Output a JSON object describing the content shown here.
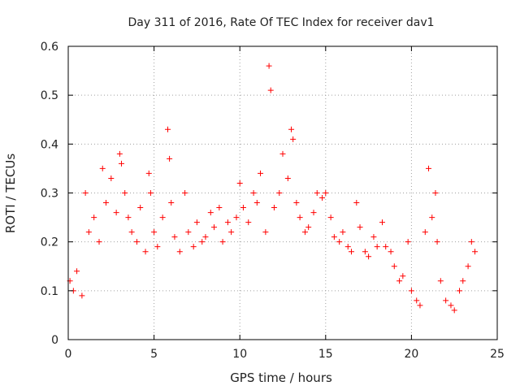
{
  "chart_data": {
    "type": "scatter",
    "title": "Day 311 of 2016, Rate Of TEC Index for receiver dav1",
    "xlabel": "GPS time / hours",
    "ylabel": "ROTI / TECUs",
    "xlim": [
      0,
      25
    ],
    "ylim": [
      0,
      0.6
    ],
    "xticks": [
      0,
      5,
      10,
      15,
      20,
      25
    ],
    "xtick_labels": [
      "0",
      "5",
      "10",
      "15",
      "20",
      "25"
    ],
    "yticks": [
      0,
      0.1,
      0.2,
      0.3,
      0.4,
      0.5,
      0.6
    ],
    "ytick_labels": [
      "0",
      "0.1",
      "0.2",
      "0.3",
      "0.4",
      "0.5",
      "0.6"
    ],
    "grid": true,
    "marker": "+",
    "color": "#ff0000",
    "series": [
      {
        "name": "dav1",
        "x": [
          0.1,
          0.3,
          0.5,
          0.8,
          1.0,
          1.2,
          1.5,
          1.8,
          2.0,
          2.2,
          2.5,
          2.8,
          3.0,
          3.1,
          3.3,
          3.5,
          3.7,
          4.0,
          4.2,
          4.5,
          4.7,
          4.8,
          5.0,
          5.2,
          5.5,
          5.8,
          5.9,
          6.0,
          6.2,
          6.5,
          6.8,
          7.0,
          7.3,
          7.5,
          7.8,
          8.0,
          8.3,
          8.5,
          8.8,
          9.0,
          9.3,
          9.5,
          9.8,
          10.0,
          10.2,
          10.5,
          10.8,
          11.0,
          11.2,
          11.5,
          11.7,
          11.8,
          12.0,
          12.3,
          12.5,
          12.8,
          13.0,
          13.1,
          13.3,
          13.5,
          13.8,
          14.0,
          14.3,
          14.5,
          14.8,
          15.0,
          15.3,
          15.5,
          15.8,
          16.0,
          16.3,
          16.5,
          16.8,
          17.0,
          17.3,
          17.5,
          17.8,
          18.0,
          18.3,
          18.5,
          18.8,
          19.0,
          19.3,
          19.5,
          19.8,
          20.0,
          20.3,
          20.5,
          20.8,
          21.0,
          21.2,
          21.4,
          21.5,
          21.7,
          22.0,
          22.3,
          22.5,
          22.8,
          23.0,
          23.3,
          23.5,
          23.7
        ],
        "y": [
          0.12,
          0.1,
          0.14,
          0.09,
          0.3,
          0.22,
          0.25,
          0.2,
          0.35,
          0.28,
          0.33,
          0.26,
          0.38,
          0.36,
          0.3,
          0.25,
          0.22,
          0.2,
          0.27,
          0.18,
          0.34,
          0.3,
          0.22,
          0.19,
          0.25,
          0.43,
          0.37,
          0.28,
          0.21,
          0.18,
          0.3,
          0.22,
          0.19,
          0.24,
          0.2,
          0.21,
          0.26,
          0.23,
          0.27,
          0.2,
          0.24,
          0.22,
          0.25,
          0.32,
          0.27,
          0.24,
          0.3,
          0.28,
          0.34,
          0.22,
          0.56,
          0.51,
          0.27,
          0.3,
          0.38,
          0.33,
          0.43,
          0.41,
          0.28,
          0.25,
          0.22,
          0.23,
          0.26,
          0.3,
          0.29,
          0.3,
          0.25,
          0.21,
          0.2,
          0.22,
          0.19,
          0.18,
          0.28,
          0.23,
          0.18,
          0.17,
          0.21,
          0.19,
          0.24,
          0.19,
          0.18,
          0.15,
          0.12,
          0.13,
          0.2,
          0.1,
          0.08,
          0.07,
          0.22,
          0.35,
          0.25,
          0.3,
          0.2,
          0.12,
          0.08,
          0.07,
          0.06,
          0.1,
          0.12,
          0.15,
          0.2,
          0.18
        ]
      }
    ]
  }
}
